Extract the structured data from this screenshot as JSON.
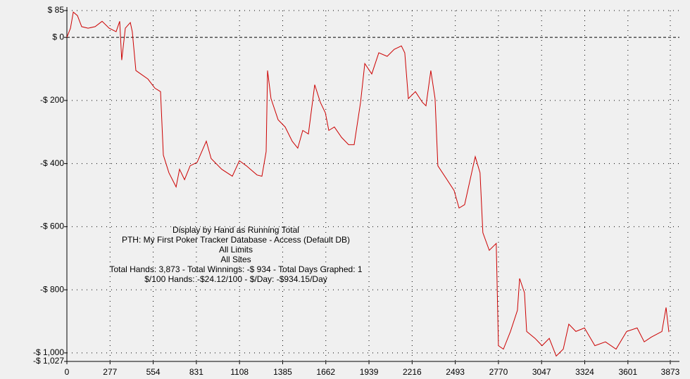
{
  "chart_data": {
    "type": "line",
    "annotations": [
      "Display by Hand as Running Total",
      "PTH: My First Poker Tracker Database - Access (Default DB)",
      "All Limits",
      "All Sites",
      "Total Hands: 3,873 - Total Winnings: -$ 934 - Total Days Graphed: 1",
      "$/100 Hands: -$24.12/100 - $/Day: -$934.15/Day"
    ],
    "x": [
      0,
      23,
      41,
      68,
      95,
      136,
      181,
      226,
      271,
      316,
      339,
      352,
      375,
      407,
      420,
      443,
      474,
      520,
      565,
      601,
      619,
      655,
      701,
      723,
      755,
      791,
      836,
      895,
      926,
      994,
      1062,
      1107,
      1152,
      1220,
      1252,
      1279,
      1288,
      1310,
      1356,
      1401,
      1446,
      1482,
      1514,
      1550,
      1591,
      1627,
      1659,
      1681,
      1717,
      1763,
      1808,
      1844,
      1885,
      1912,
      1957,
      2002,
      2056,
      2101,
      2147,
      2169,
      2192,
      2237,
      2282,
      2305,
      2336,
      2363,
      2381,
      2440,
      2485,
      2517,
      2553,
      2598,
      2621,
      2652,
      2670,
      2711,
      2756,
      2770,
      2802,
      2847,
      2892,
      2906,
      2937,
      2951,
      3005,
      3050,
      3096,
      3141,
      3186,
      3222,
      3267,
      3322,
      3389,
      3457,
      3525,
      3593,
      3660,
      3706,
      3751,
      3819,
      3846,
      3864
    ],
    "series": [
      {
        "color": "#cc0000",
        "values": [
          0,
          29,
          80,
          69,
          34,
          29,
          34,
          51,
          29,
          18,
          51,
          -72,
          29,
          47,
          18,
          -105,
          -116,
          -132,
          -161,
          -172,
          -373,
          -429,
          -474,
          -418,
          -451,
          -407,
          -396,
          -329,
          -384,
          -418,
          -440,
          -391,
          -407,
          -436,
          -440,
          -362,
          -105,
          -194,
          -261,
          -284,
          -329,
          -351,
          -295,
          -306,
          -150,
          -206,
          -239,
          -295,
          -284,
          -317,
          -340,
          -340,
          -206,
          -83,
          -116,
          -49,
          -60,
          -38,
          -27,
          -49,
          -194,
          -172,
          -206,
          -217,
          -105,
          -194,
          -407,
          -451,
          -485,
          -541,
          -530,
          -429,
          -378,
          -429,
          -619,
          -675,
          -653,
          -977,
          -988,
          -932,
          -865,
          -764,
          -809,
          -932,
          -954,
          -977,
          -954,
          -1010,
          -988,
          -909,
          -932,
          -921,
          -977,
          -965,
          -988,
          -932,
          -921,
          -965,
          -950,
          -932,
          -856,
          -934
        ]
      }
    ],
    "xlim": [
      0,
      3873
    ],
    "xticks": [
      0,
      277,
      554,
      831,
      1108,
      1385,
      1662,
      1939,
      2216,
      2493,
      2770,
      3047,
      3324,
      3601,
      3873
    ],
    "ylim": [
      -1027,
      85
    ],
    "yticks": [
      {
        "value": 85,
        "label": "$ 85"
      },
      {
        "value": 0,
        "label": "$ 0"
      },
      {
        "value": -200,
        "label": "-$ 200"
      },
      {
        "value": -400,
        "label": "-$ 400"
      },
      {
        "value": -600,
        "label": "-$ 600"
      },
      {
        "value": -800,
        "label": "-$ 800"
      },
      {
        "value": -1000,
        "label": "-$ 1,000"
      },
      {
        "value": -1027,
        "label": "-$ 1,027"
      }
    ],
    "grid": true
  }
}
